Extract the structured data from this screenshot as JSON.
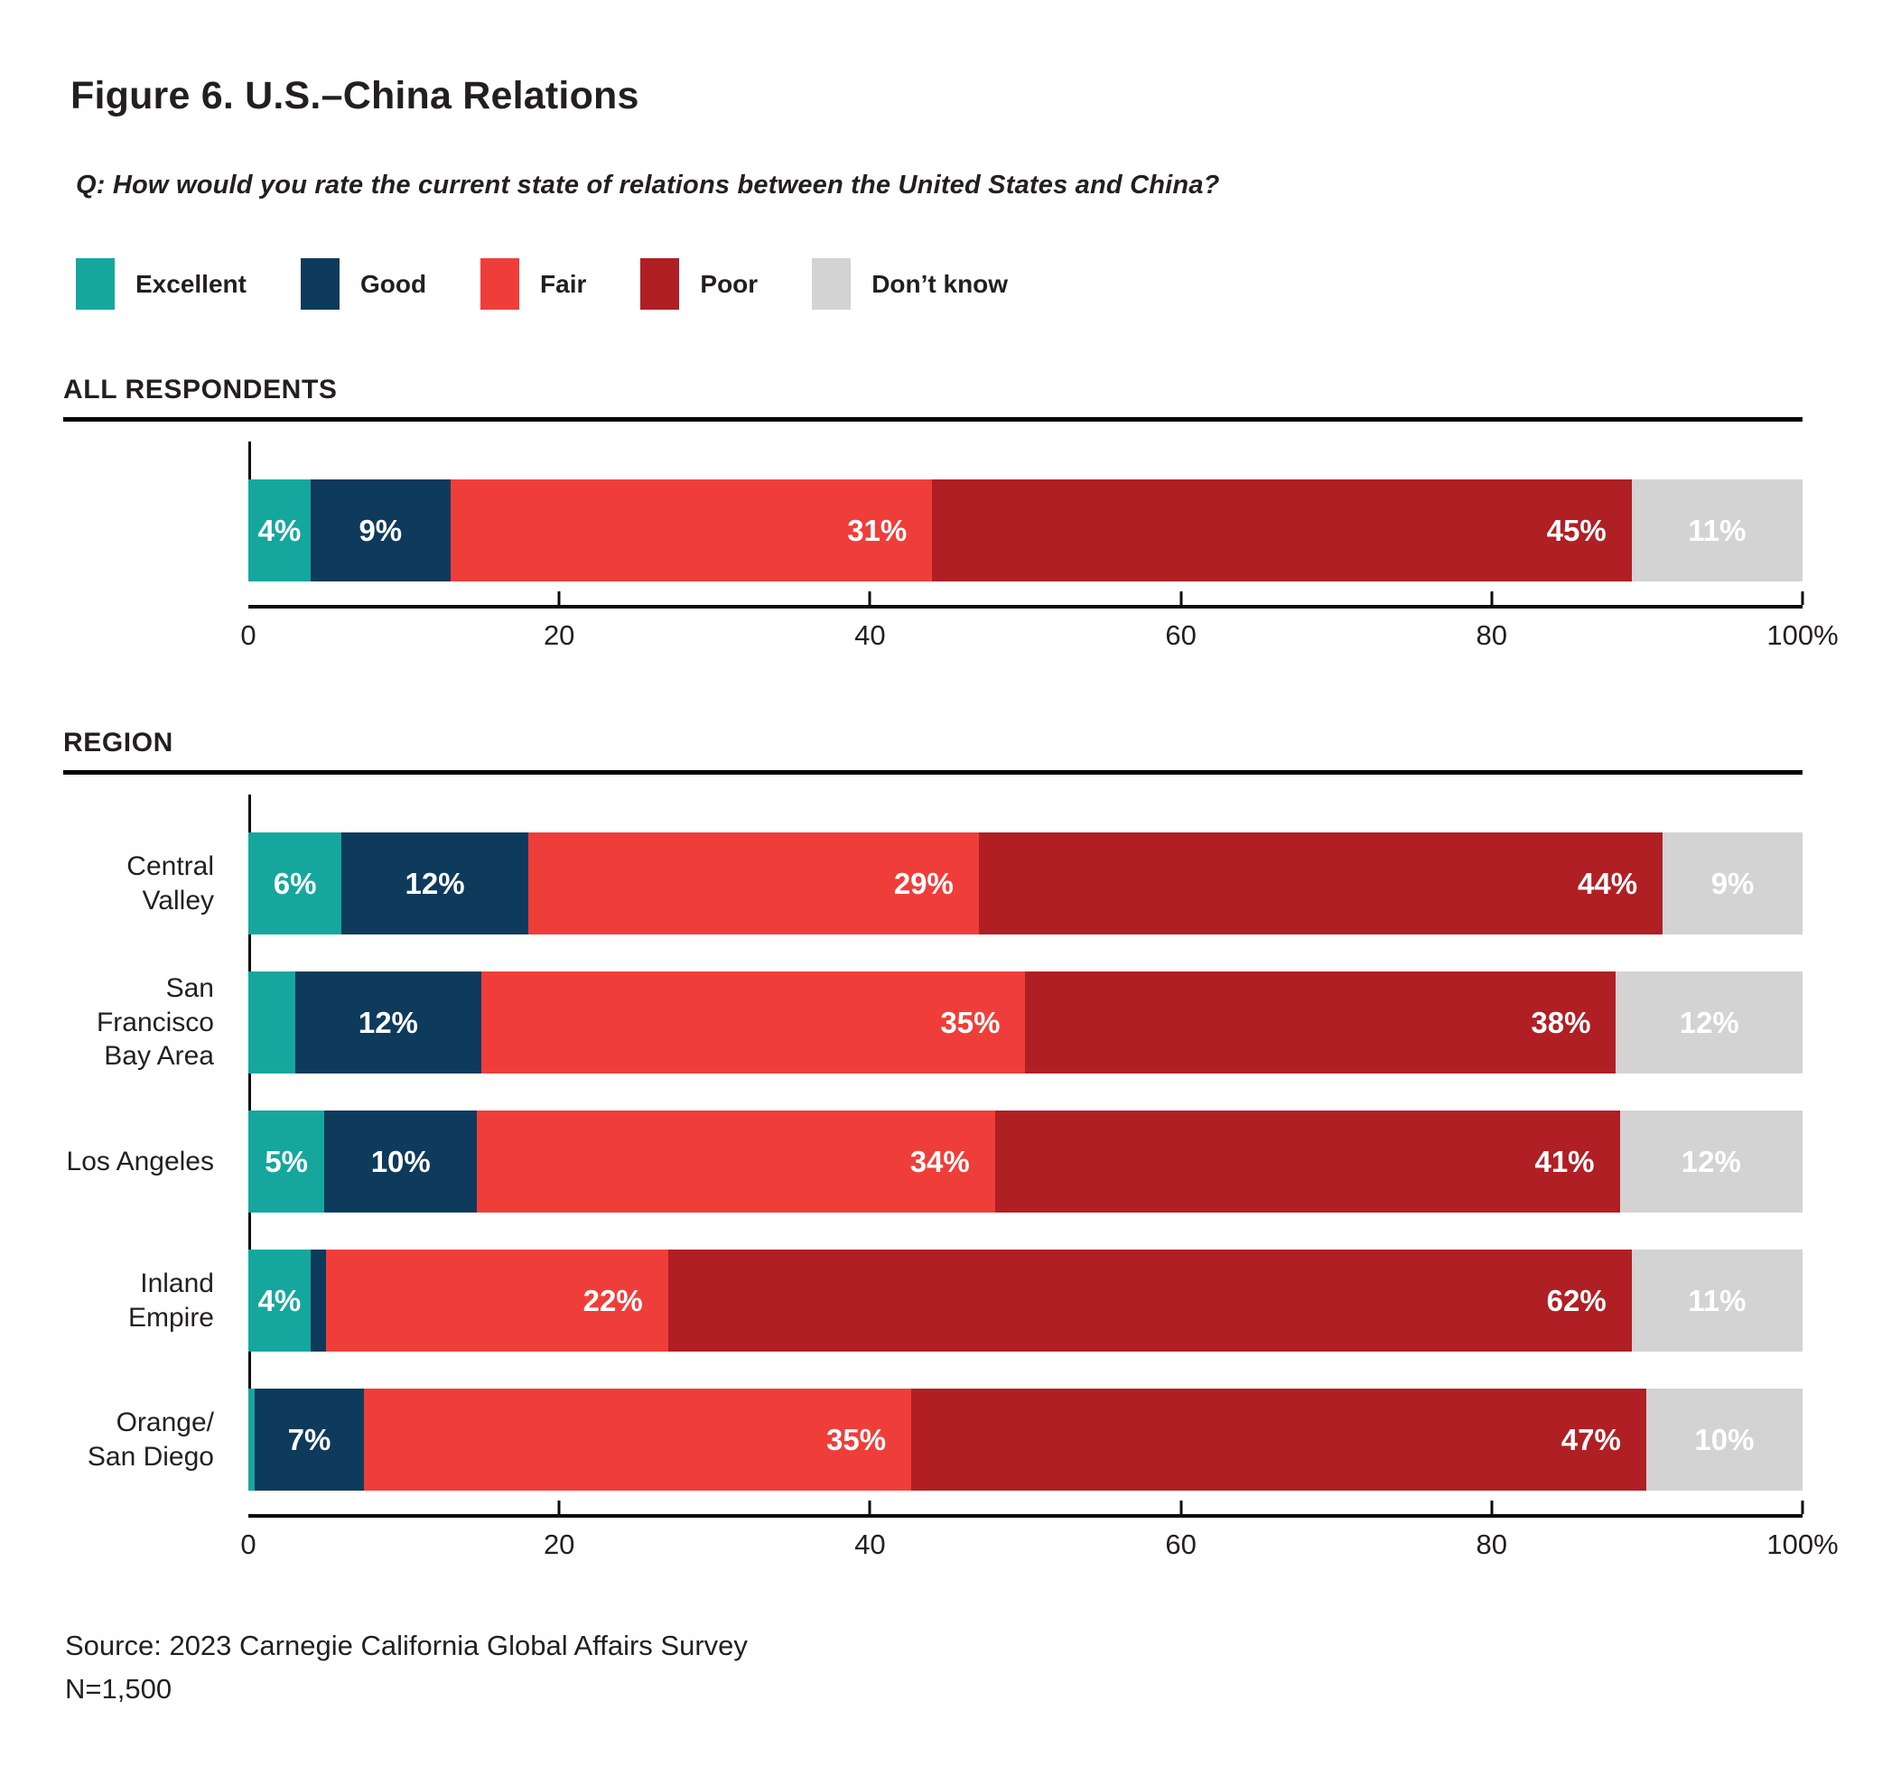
{
  "title": "Figure 6. U.S.–China Relations",
  "question": "Q: How would you rate the current state of relations between the United States and China?",
  "colors": {
    "excellent": "#15A79D",
    "good": "#0E3A5C",
    "fair": "#EF3E3A",
    "poor": "#B01F24",
    "dont_know": "#D3D3D4",
    "text": "#231F20",
    "rule": "#000000"
  },
  "legend": [
    {
      "label": "Excellent",
      "color": "#15A79D"
    },
    {
      "label": "Good",
      "color": "#0E3A5C"
    },
    {
      "label": "Fair",
      "color": "#EF3E3A"
    },
    {
      "label": "Poor",
      "color": "#B01F24"
    },
    {
      "label": "Don’t know",
      "color": "#D3D3D4"
    }
  ],
  "chart_data": [
    {
      "type": "bar",
      "stacked": true,
      "orientation": "horizontal",
      "section_title": "ALL RESPONDENTS",
      "categories": [
        ""
      ],
      "series": [
        {
          "name": "Excellent",
          "color": "#15A79D",
          "label_align": "center",
          "values": [
            4
          ]
        },
        {
          "name": "Good",
          "color": "#0E3A5C",
          "label_align": "center",
          "values": [
            9
          ]
        },
        {
          "name": "Fair",
          "color": "#EF3E3A",
          "label_align": "end",
          "values": [
            31
          ]
        },
        {
          "name": "Poor",
          "color": "#B01F24",
          "label_align": "end",
          "values": [
            45
          ]
        },
        {
          "name": "Don’t know",
          "color": "#D3D3D4",
          "label_align": "center",
          "values": [
            11
          ]
        }
      ],
      "x_range": [
        0,
        100
      ],
      "x_ticks": [
        {
          "value": 0,
          "label": "0"
        },
        {
          "value": 20,
          "label": "20"
        },
        {
          "value": 40,
          "label": "40"
        },
        {
          "value": 60,
          "label": "60"
        },
        {
          "value": 80,
          "label": "80"
        },
        {
          "value": 100,
          "label": "100%"
        }
      ],
      "value_suffix": "%",
      "label_min_to_show": 4,
      "grid": false,
      "legend_position": "top"
    },
    {
      "type": "bar",
      "stacked": true,
      "orientation": "horizontal",
      "section_title": "REGION",
      "categories": [
        "Central Valley",
        "San Francisco\nBay Area",
        "Los Angeles",
        "Inland Empire",
        "Orange/\nSan Diego"
      ],
      "series": [
        {
          "name": "Excellent",
          "color": "#15A79D",
          "label_align": "center",
          "values": [
            6,
            3,
            5,
            4,
            0.4
          ]
        },
        {
          "name": "Good",
          "color": "#0E3A5C",
          "label_align": "center",
          "values": [
            12,
            12,
            10,
            1,
            7
          ]
        },
        {
          "name": "Fair",
          "color": "#EF3E3A",
          "label_align": "end",
          "values": [
            29,
            35,
            34,
            22,
            35
          ]
        },
        {
          "name": "Poor",
          "color": "#B01F24",
          "label_align": "end",
          "values": [
            44,
            38,
            41,
            62,
            47
          ]
        },
        {
          "name": "Don’t know",
          "color": "#D3D3D4",
          "label_align": "center",
          "values": [
            9,
            12,
            12,
            11,
            10
          ]
        }
      ],
      "x_range": [
        0,
        100
      ],
      "x_ticks": [
        {
          "value": 0,
          "label": "0"
        },
        {
          "value": 20,
          "label": "20"
        },
        {
          "value": 40,
          "label": "40"
        },
        {
          "value": 60,
          "label": "60"
        },
        {
          "value": 80,
          "label": "80"
        },
        {
          "value": 100,
          "label": "100%"
        }
      ],
      "value_suffix": "%",
      "label_min_to_show": 4,
      "grid": false,
      "legend_position": "top"
    }
  ],
  "source_line1": "Source: 2023 Carnegie California Global Affairs Survey",
  "source_line2": "N=1,500"
}
